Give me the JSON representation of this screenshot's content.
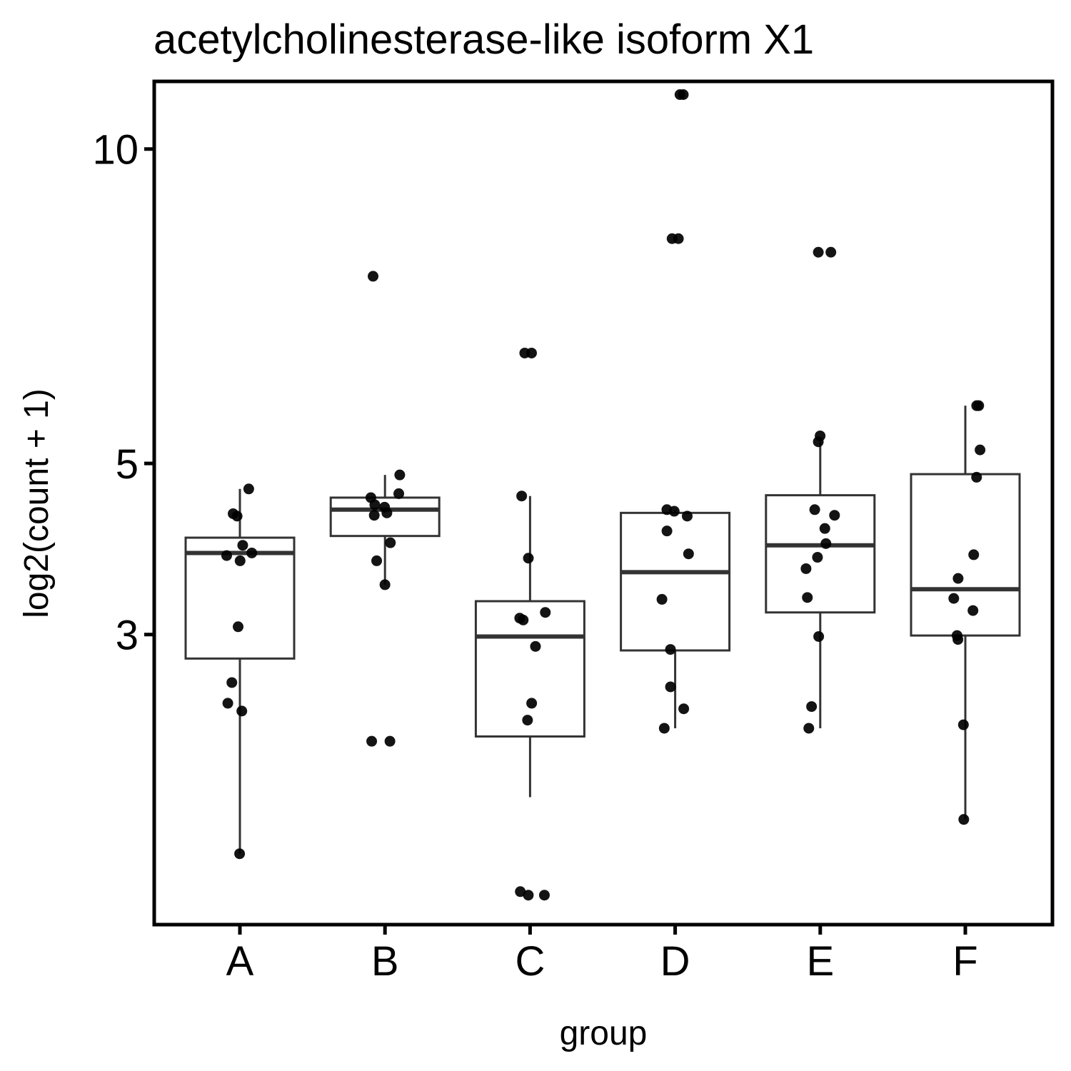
{
  "chart_data": {
    "type": "box",
    "title": "acetylcholinesterase-like isoform X1",
    "xlabel": "group",
    "ylabel": "log2(count + 1)",
    "y_scale": "sqrt",
    "ylim": [
      0.77,
      11.3
    ],
    "y_ticks": [
      3,
      5,
      10
    ],
    "y_tick_labels": [
      "3",
      "5",
      "10"
    ],
    "categories": [
      "A",
      "B",
      "C",
      "D",
      "E",
      "F"
    ],
    "boxes": [
      {
        "group": "A",
        "whisker_low": 1.18,
        "q1": 2.76,
        "median": 3.89,
        "q3": 4.07,
        "whisker_high": 4.67
      },
      {
        "group": "B",
        "whisker_low": 3.53,
        "q1": 4.09,
        "median": 4.41,
        "q3": 4.56,
        "whisker_high": 4.85
      },
      {
        "group": "C",
        "whisker_low": 1.57,
        "q1": 2.05,
        "median": 2.98,
        "q3": 3.35,
        "whisker_high": 4.58
      },
      {
        "group": "D",
        "whisker_low": 2.12,
        "q1": 2.84,
        "median": 3.67,
        "q3": 4.37,
        "whisker_high": 4.41
      },
      {
        "group": "E",
        "whisker_low": 2.12,
        "q1": 3.23,
        "median": 3.98,
        "q3": 4.59,
        "whisker_high": 5.29
      },
      {
        "group": "F",
        "whisker_low": 1.41,
        "q1": 2.99,
        "median": 3.48,
        "q3": 4.86,
        "whisker_high": 5.79
      }
    ],
    "points": {
      "A": [
        1.18,
        2.27,
        2.34,
        2.53,
        3.08,
        3.8,
        3.86,
        3.89,
        3.98,
        4.33,
        4.36,
        4.67
      ],
      "B": [
        2.01,
        2.01,
        3.53,
        3.8,
        4.01,
        4.34,
        4.37,
        4.44,
        4.47,
        4.56,
        4.61,
        4.85,
        7.77
      ],
      "C": [
        0.93,
        0.93,
        0.95,
        2.19,
        2.34,
        2.88,
        3.15,
        3.17,
        3.23,
        3.83,
        4.58,
        6.56,
        6.56
      ],
      "D": [
        2.12,
        2.29,
        2.49,
        2.85,
        3.37,
        3.88,
        4.15,
        4.33,
        4.39,
        4.41,
        8.4,
        8.4,
        11.04,
        11.04
      ],
      "E": [
        2.12,
        2.31,
        2.98,
        3.39,
        3.71,
        3.84,
        4.0,
        4.18,
        4.34,
        4.41,
        5.29,
        5.37,
        8.17,
        8.17
      ],
      "F": [
        1.41,
        2.15,
        2.95,
        2.99,
        3.25,
        3.38,
        3.6,
        3.87,
        4.82,
        5.18,
        5.79,
        5.79
      ]
    }
  }
}
